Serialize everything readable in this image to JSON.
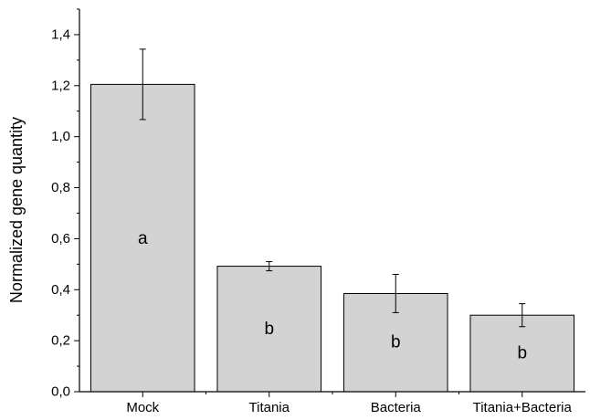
{
  "chart_data": {
    "type": "bar",
    "title": "",
    "xlabel": "",
    "ylabel": "Normalized gene quantity",
    "ylim": [
      0,
      1.5
    ],
    "yticks": [
      "0,0",
      "0,2",
      "0,4",
      "0,6",
      "0,8",
      "1,0",
      "1,2",
      "1,4"
    ],
    "categories": [
      "Mock",
      "Titania",
      "Bacteria",
      "Titania+Bacteria"
    ],
    "values": [
      1.205,
      0.492,
      0.385,
      0.3
    ],
    "errors": [
      0.138,
      0.018,
      0.075,
      0.045
    ],
    "letters": [
      "a",
      "b",
      "b",
      "b"
    ],
    "bar_color": "#d3d3d3",
    "grid": false,
    "legend": "none"
  }
}
